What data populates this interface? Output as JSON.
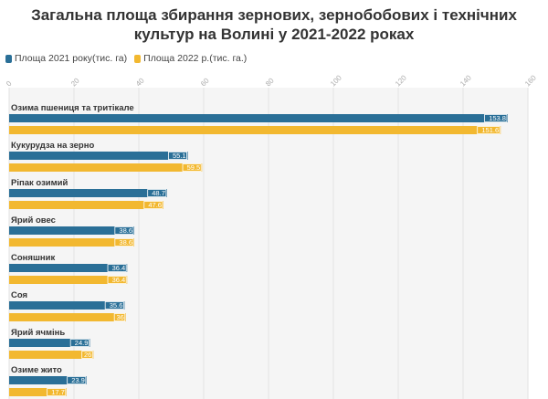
{
  "chart_data": {
    "type": "bar",
    "orientation": "horizontal",
    "title": "Загальна площа збирання зернових, зернобобових і технічних культур на Волині у 2021-2022 роках",
    "title_lines": [
      "Загальна площа збирання зернових, зернобобових і технічних",
      "культур на Волині у 2021-2022 роках"
    ],
    "categories": [
      "Озима пшениця та тритікале",
      "Кукурудза на зерно",
      "Ріпак озимий",
      "Ярий овес",
      "Соняшник",
      "Соя",
      "Ярий ячмінь",
      "Озиме жито"
    ],
    "series": [
      {
        "name": "Площа 2021 року(тис. га)",
        "color": "#2a6f97",
        "values": [
          153.8,
          55.1,
          48.7,
          38.6,
          36.4,
          35.6,
          24.9,
          23.9
        ],
        "labels": [
          "153.8",
          "55.1",
          "48.7",
          "38.6",
          "36.4",
          "35.6",
          "24.9",
          "23.9"
        ]
      },
      {
        "name": "Площа 2022 р.(тис. га.)",
        "color": "#f2b830",
        "values": [
          151.6,
          59.5,
          47.6,
          38.6,
          36.4,
          36,
          26,
          17.7
        ],
        "labels": [
          "151.6",
          "59.5",
          "47.6",
          "38.6",
          "36.4",
          "36",
          "26",
          "17.7"
        ]
      }
    ],
    "xlim": [
      0,
      160
    ],
    "xticks": [
      "0",
      "20",
      "40",
      "60",
      "80",
      "100",
      "120",
      "140",
      "160"
    ],
    "grid": true,
    "legend_position": "top-left"
  }
}
